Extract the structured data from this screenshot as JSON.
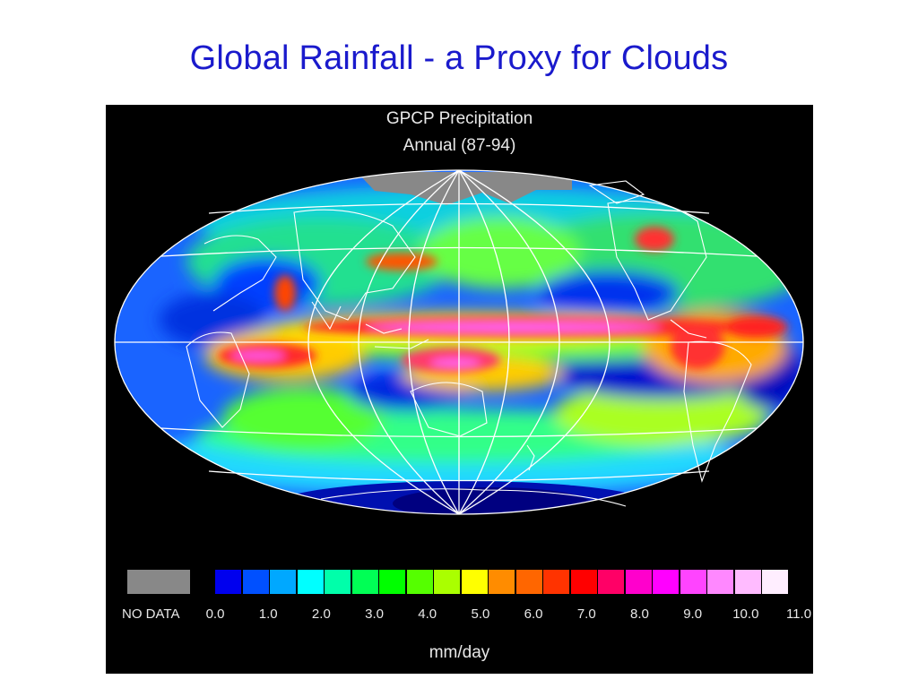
{
  "slide": {
    "title": "Global Rainfall - a Proxy for Clouds"
  },
  "map": {
    "title_line1": "GPCP Precipitation",
    "title_line2": "Annual (87-94)",
    "projection": "hammer-aitoff",
    "background_color": "#000000",
    "grid_color": "#ffffff",
    "coastline_color": "#ffffff",
    "regions": [
      {
        "name": "itcz-pacific",
        "color": "#ff2a2a"
      },
      {
        "name": "itcz-core",
        "color": "#ff66ee"
      },
      {
        "name": "indian-ocean-maximum",
        "color": "#ff55dd"
      },
      {
        "name": "spcz",
        "color": "#ff3b6b"
      },
      {
        "name": "amazon",
        "color": "#ff3030"
      },
      {
        "name": "atlantic-itcz",
        "color": "#ff2020"
      },
      {
        "name": "north-pacific-storm-track",
        "color": "#66ff44"
      },
      {
        "name": "antarctic-no-data",
        "color": "#888888"
      }
    ]
  },
  "legend": {
    "nodata_label": "NO DATA",
    "nodata_color": "#888888",
    "colors": [
      "#0000ee",
      "#0050ff",
      "#00a8ff",
      "#00ffff",
      "#00ffaa",
      "#00ff55",
      "#00ff00",
      "#55ff00",
      "#aaff00",
      "#ffff00",
      "#ff8c00",
      "#ff6600",
      "#ff3300",
      "#ff0000",
      "#ff0066",
      "#ff00cc",
      "#ff00ff",
      "#ff44ff",
      "#ff88ff",
      "#ffbbff",
      "#ffeeff"
    ],
    "tick_labels": [
      "0.0",
      "1.0",
      "2.0",
      "3.0",
      "4.0",
      "5.0",
      "6.0",
      "7.0",
      "8.0",
      "9.0",
      "10.0",
      "11.0"
    ],
    "units": "mm/day",
    "min": 0,
    "max": 11
  }
}
